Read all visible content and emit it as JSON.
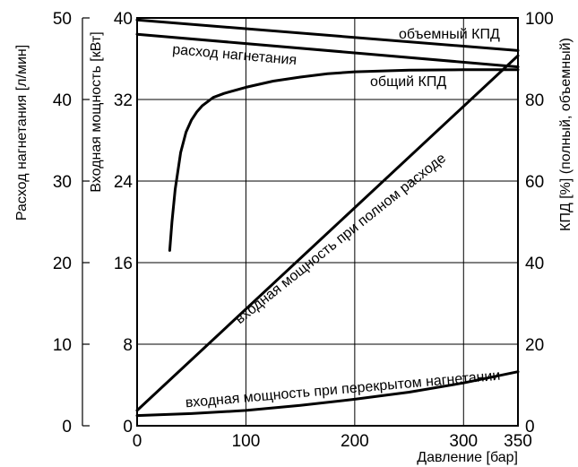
{
  "chart_data": {
    "type": "line",
    "x": {
      "label": "Давление [бар]",
      "range": [
        0,
        350
      ],
      "ticks": [
        0,
        100,
        200,
        300,
        350
      ]
    },
    "y_axes": {
      "flow": {
        "label": "Расход нагнетания [л/мин]",
        "range": [
          0,
          50
        ],
        "ticks": [
          0,
          10,
          20,
          30,
          40,
          50
        ]
      },
      "power": {
        "label": "Входная мощность [кВт]",
        "range": [
          0,
          40
        ],
        "ticks": [
          0,
          8,
          16,
          24,
          32,
          40
        ]
      },
      "efficiency": {
        "label": "КПД [%] (полный, объемный)",
        "range": [
          0,
          100
        ],
        "ticks": [
          0,
          20,
          40,
          60,
          80,
          100
        ]
      }
    },
    "series": [
      {
        "name": "объемный КПД",
        "axis": "efficiency",
        "x": [
          0,
          350
        ],
        "y": [
          99.5,
          92
        ]
      },
      {
        "name": "расход нагнетания",
        "axis": "flow",
        "x": [
          0,
          350
        ],
        "y": [
          48,
          44
        ]
      },
      {
        "name": "общий КПД",
        "axis": "efficiency",
        "x": [
          30,
          32,
          35,
          40,
          45,
          50,
          55,
          60,
          70,
          80,
          100,
          125,
          150,
          175,
          200,
          250,
          300,
          350
        ],
        "y": [
          43,
          50,
          58,
          67,
          72,
          75,
          77,
          78.5,
          80.5,
          81.5,
          83,
          84.5,
          85.5,
          86.3,
          86.8,
          87.2,
          87.3,
          87.3
        ]
      },
      {
        "name": "входная мощность при полном расходе",
        "axis": "power",
        "x": [
          0,
          350
        ],
        "y": [
          1.5,
          36.3
        ]
      },
      {
        "name": "входная мощность при перекрытом нагнетании",
        "axis": "power",
        "x": [
          0,
          50,
          100,
          150,
          200,
          250,
          300,
          350
        ],
        "y": [
          1.0,
          1.2,
          1.5,
          2.0,
          2.6,
          3.3,
          4.2,
          5.3
        ]
      }
    ],
    "annotations": [
      "объемный КПД",
      "расход нагнетания",
      "общий КПД",
      "входная мощность при полном расходе",
      "входная мощность при перекрытом нагнетании"
    ]
  }
}
